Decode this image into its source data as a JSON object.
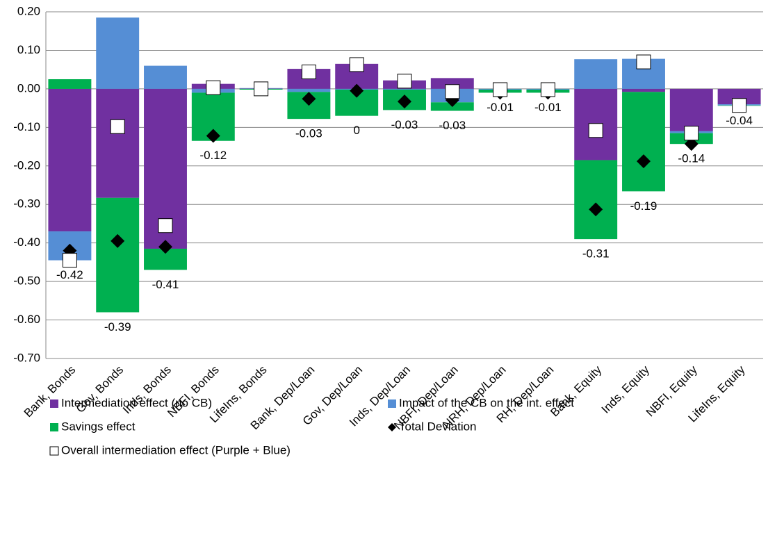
{
  "chart_data": {
    "type": "bar",
    "categories": [
      "Bank, Bonds",
      "Gov, Bonds",
      "Inds, Bonds",
      "NBFI, Bonds",
      "LifeIns, Bonds",
      "Bank, Dep/Loan",
      "Gov, Dep/Loan",
      "Inds, Dep/Loan",
      "NBFI, Dep/Loan",
      "NRH, Dep/Loan",
      "RH, Dep/Loan",
      "Bank, Equity",
      "Inds, Equity",
      "NBFI, Equity",
      "LifeIns, Equity"
    ],
    "series": [
      {
        "name": "Intermediation effect (no CB)",
        "color": "#7030a0",
        "values": [
          -0.37,
          -0.283,
          -0.415,
          0.013,
          0.001,
          0.052,
          0.065,
          0.022,
          0.028,
          0,
          0,
          -0.185,
          -0.008,
          -0.11,
          -0.04
        ]
      },
      {
        "name": "Impact of the CB on the int. effect",
        "color": "#558ed5",
        "values": [
          -0.075,
          0.185,
          0.06,
          -0.01,
          0.001,
          -0.008,
          -0.002,
          -0.002,
          -0.035,
          -0.002,
          -0.002,
          0.077,
          0.078,
          -0.005,
          -0.003
        ]
      },
      {
        "name": "Savings effect",
        "color": "#00b050",
        "values": [
          0.025,
          -0.297,
          -0.055,
          -0.125,
          -0.002,
          -0.07,
          -0.068,
          -0.053,
          -0.022,
          -0.008,
          -0.008,
          -0.205,
          -0.258,
          -0.028,
          -0.001
        ]
      },
      {
        "name": "Total Deviation",
        "color": "#000000",
        "marker": "diamond",
        "values": [
          -0.42,
          -0.395,
          -0.41,
          -0.122,
          0,
          -0.026,
          -0.005,
          -0.033,
          -0.029,
          -0.01,
          -0.01,
          -0.313,
          -0.188,
          -0.143,
          -0.044
        ],
        "value_labels": [
          "-0.42",
          "-0.39",
          "-0.41",
          "-0.12",
          null,
          "-0.03",
          "0",
          "-0.03",
          "-0.03",
          "-0.01",
          "-0.01",
          "-0.31",
          "-0.19",
          "-0.14",
          "-0.04"
        ]
      },
      {
        "name": "Overall intermediation effect (Purple + Blue)",
        "color": "#ffffff",
        "marker": "square",
        "values": [
          -0.445,
          -0.098,
          -0.355,
          0.003,
          0,
          0.044,
          0.063,
          0.02,
          -0.007,
          -0.002,
          -0.002,
          -0.108,
          0.07,
          -0.115,
          -0.043
        ]
      }
    ],
    "ylim": [
      -0.7,
      0.2
    ],
    "yticks": [
      {
        "value": -0.7,
        "label": "-0.70"
      },
      {
        "value": -0.6,
        "label": "-0.60"
      },
      {
        "value": -0.5,
        "label": "-0.50"
      },
      {
        "value": -0.4,
        "label": "-0.40"
      },
      {
        "value": -0.3,
        "label": "-0.30"
      },
      {
        "value": -0.2,
        "label": "-0.20"
      },
      {
        "value": -0.1,
        "label": "-0.10"
      },
      {
        "value": 0,
        "label": "0.00"
      },
      {
        "value": 0.1,
        "label": "0.10"
      },
      {
        "value": 0.2,
        "label": "0.20"
      }
    ],
    "grid": true
  }
}
